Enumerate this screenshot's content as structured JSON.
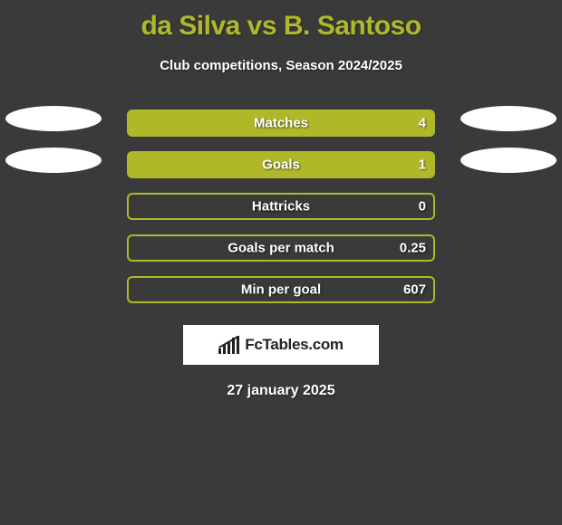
{
  "title": "da Silva vs B. Santoso",
  "subtitle": "Club competitions, Season 2024/2025",
  "date": "27 january 2025",
  "brand": "FcTables.com",
  "colors": {
    "accent": "#b0b82a",
    "background": "#3a3a3a",
    "text": "#ffffff",
    "ellipse": "#ffffff",
    "brand_bg": "#ffffff",
    "brand_fg": "#222222"
  },
  "stats": [
    {
      "label": "Matches",
      "value_right": "4",
      "fill_left_pct": 0,
      "fill_right_pct": 100,
      "show_ellipses": true
    },
    {
      "label": "Goals",
      "value_right": "1",
      "fill_left_pct": 0,
      "fill_right_pct": 100,
      "show_ellipses": true
    },
    {
      "label": "Hattricks",
      "value_right": "0",
      "fill_left_pct": 0,
      "fill_right_pct": 0,
      "show_ellipses": false
    },
    {
      "label": "Goals per match",
      "value_right": "0.25",
      "fill_left_pct": 0,
      "fill_right_pct": 0,
      "show_ellipses": false
    },
    {
      "label": "Min per goal",
      "value_right": "607",
      "fill_left_pct": 0,
      "fill_right_pct": 0,
      "show_ellipses": false
    }
  ]
}
